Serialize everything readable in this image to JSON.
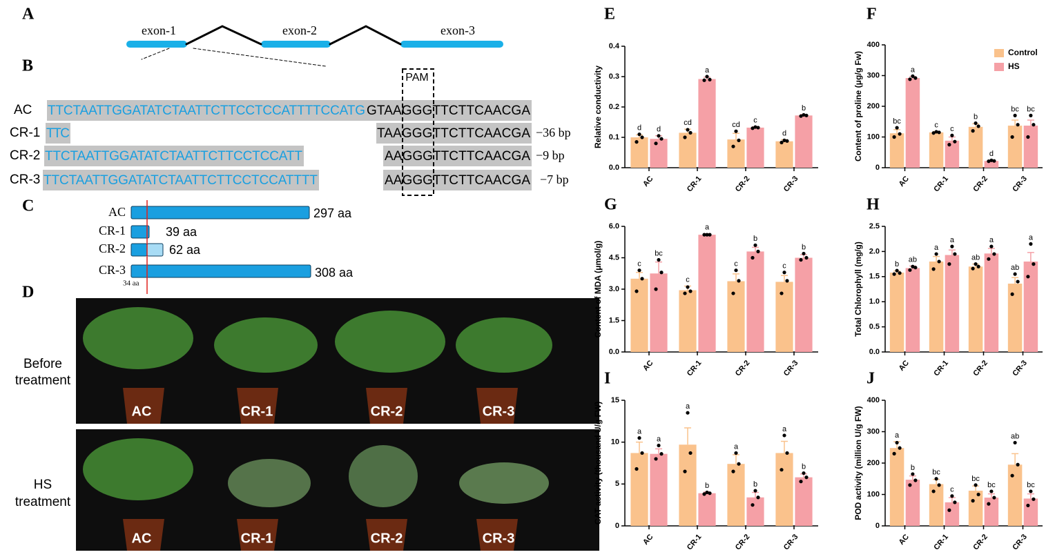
{
  "panel_a": {
    "label": "A",
    "exons": [
      "exon-1",
      "exon-2",
      "exon-3"
    ]
  },
  "panel_b": {
    "label": "B",
    "pam": "PAM",
    "rows": [
      {
        "name": "AC",
        "target": "TTCTAATTGGATATCTAATTCTTCCTCCATTTTCCATG",
        "flank": "GTAAGGGTTCTTCAACGA"
      },
      {
        "name": "CR-1",
        "target": "TTC",
        "flank": "TAAGGGTTCTTCAACGA",
        "deletion": "−36 bp"
      },
      {
        "name": "CR-2",
        "target": "TTCTAATTGGATATCTAATTCTTCCTCCATT",
        "flank": "AAGGGTTCTTCAACGA",
        "deletion": "−9 bp"
      },
      {
        "name": "CR-3",
        "target": "TTCTAATTGGATATCTAATTCTTCCTCCATTTT",
        "flank": "AAGGGTTCTTCAACGA",
        "deletion": "−7 bp"
      }
    ]
  },
  "panel_c": {
    "label": "C",
    "rows": [
      {
        "name": "AC",
        "length": "297 aa"
      },
      {
        "name": "CR-1",
        "length": "39 aa"
      },
      {
        "name": "CR-2",
        "length": "62 aa"
      },
      {
        "name": "CR-3",
        "length": "308 aa"
      }
    ],
    "marker": "34 aa"
  },
  "panel_d": {
    "label": "D",
    "rows": [
      {
        "title": [
          "Before",
          "treatment"
        ],
        "plants": [
          "AC",
          "CR-1",
          "CR-2",
          "CR-3"
        ]
      },
      {
        "title": [
          "HS",
          "treatment"
        ],
        "plants": [
          "AC",
          "CR-1",
          "CR-2",
          "CR-3"
        ]
      }
    ]
  },
  "chart_data": [
    {
      "type": "bar",
      "panel": "E",
      "ylabel": "Relative conductivity",
      "categories": [
        "AC",
        "CR-1",
        "CR-2",
        "CR-3"
      ],
      "ylim": [
        0,
        0.4
      ],
      "yticks": [
        {
          "value": 0,
          "label": "0.0"
        },
        0.1,
        0.2,
        0.3,
        0.4
      ],
      "series": [
        {
          "name": "Control",
          "color": "#fac28c",
          "values": [
            0.1,
            0.115,
            0.093,
            0.087
          ],
          "errors": [
            0.008,
            0.012,
            0.02,
            0.005
          ],
          "points": [
            [
              0.11,
              0.1,
              0.085
            ],
            [
              0.125,
              0.115,
              0.1
            ],
            [
              0.12,
              0.09,
              0.07
            ],
            [
              0.09,
              0.088,
              0.083
            ]
          ],
          "letters": [
            "d",
            "cd",
            "cd",
            "d"
          ]
        },
        {
          "name": "HS",
          "color": "#f5a0a6",
          "values": [
            0.095,
            0.292,
            0.132,
            0.172
          ],
          "errors": [
            0.01,
            0.006,
            0.003,
            0.003
          ],
          "points": [
            [
              0.105,
              0.095,
              0.08
            ],
            [
              0.3,
              0.29,
              0.288
            ],
            [
              0.134,
              0.132,
              0.13
            ],
            [
              0.174,
              0.172,
              0.17
            ]
          ],
          "letters": [
            "d",
            "a",
            "c",
            "b"
          ]
        }
      ]
    },
    {
      "type": "bar",
      "panel": "F",
      "ylabel": "Content of proline (μg/g Fw)",
      "categories": [
        "AC",
        "CR-1",
        "CR-2",
        "CR-3"
      ],
      "ylim": [
        0,
        400
      ],
      "yticks": [
        0,
        100,
        200,
        300,
        400
      ],
      "legend": "upper right",
      "series": [
        {
          "name": "Control",
          "color": "#fac28c",
          "values": [
            112,
            115,
            133,
            137
          ],
          "errors": [
            12,
            3,
            10,
            18
          ],
          "points": [
            [
              130,
              110,
              100
            ],
            [
              117,
              115,
              113
            ],
            [
              145,
              135,
              120
            ],
            [
              170,
              140,
              100
            ]
          ],
          "letters": [
            "bc",
            "c",
            "b",
            "bc"
          ]
        },
        {
          "name": "HS",
          "color": "#f5a0a6",
          "values": [
            292,
            88,
            22,
            137
          ],
          "errors": [
            5,
            12,
            2,
            18
          ],
          "points": [
            [
              298,
              292,
              288
            ],
            [
              105,
              85,
              75
            ],
            [
              24,
              22,
              21
            ],
            [
              170,
              140,
              100
            ]
          ],
          "letters": [
            "a",
            "c",
            "d",
            "bc"
          ]
        }
      ]
    },
    {
      "type": "bar",
      "panel": "G",
      "ylabel": "Content of MDA (μmol/g)",
      "categories": [
        "AC",
        "CR-1",
        "CR-2",
        "CR-3"
      ],
      "ylim": [
        0,
        6
      ],
      "yticks": [
        {
          "value": 0,
          "label": "0.0"
        },
        1.5,
        {
          "value": 3,
          "label": "3.0"
        },
        4.5,
        {
          "value": 6,
          "label": "6.0"
        }
      ],
      "series": [
        {
          "name": "Control",
          "color": "#fac28c",
          "values": [
            3.5,
            2.95,
            3.38,
            3.35
          ],
          "errors": [
            0.3,
            0.2,
            0.35,
            0.3
          ],
          "points": [
            [
              3.9,
              3.5,
              2.9
            ],
            [
              3.1,
              2.9,
              2.8
            ],
            [
              3.9,
              3.4,
              2.8
            ],
            [
              3.8,
              3.4,
              2.8
            ]
          ],
          "letters": [
            "c",
            "c",
            "c",
            "c"
          ]
        },
        {
          "name": "HS",
          "color": "#f5a0a6",
          "values": [
            3.75,
            5.6,
            4.8,
            4.5
          ],
          "errors": [
            0.55,
            0.05,
            0.2,
            0.15
          ],
          "points": [
            [
              4.4,
              3.8,
              3.0
            ],
            [
              5.6,
              5.6,
              5.6
            ],
            [
              5.1,
              4.8,
              4.5
            ],
            [
              4.7,
              4.5,
              4.4
            ]
          ],
          "letters": [
            "bc",
            "a",
            "b",
            "b"
          ]
        }
      ]
    },
    {
      "type": "bar",
      "panel": "H",
      "ylabel": "Total Chlorophyll (mg/g)",
      "categories": [
        "AC",
        "CR-1",
        "CR-2",
        "CR-3"
      ],
      "ylim": [
        0,
        2.5
      ],
      "yticks": [
        {
          "value": 0,
          "label": "0.0"
        },
        0.5,
        {
          "value": 1,
          "label": "1.0"
        },
        1.5,
        {
          "value": 2,
          "label": "2.0"
        },
        2.5
      ],
      "series": [
        {
          "name": "Control",
          "color": "#fac28c",
          "values": [
            1.58,
            1.8,
            1.7,
            1.36
          ],
          "errors": [
            0.03,
            0.1,
            0.05,
            0.12
          ],
          "points": [
            [
              1.62,
              1.57,
              1.55
            ],
            [
              1.95,
              1.8,
              1.65
            ],
            [
              1.75,
              1.7,
              1.66
            ],
            [
              1.55,
              1.4,
              1.15
            ]
          ],
          "letters": [
            "b",
            "a",
            "ab",
            "ab"
          ]
        },
        {
          "name": "HS",
          "color": "#f5a0a6",
          "values": [
            1.67,
            1.93,
            1.96,
            1.8
          ],
          "errors": [
            0.04,
            0.1,
            0.1,
            0.18
          ],
          "points": [
            [
              1.7,
              1.68,
              1.63
            ],
            [
              2.1,
              1.95,
              1.75
            ],
            [
              2.1,
              1.95,
              1.85
            ],
            [
              2.15,
              1.75,
              1.5
            ]
          ],
          "letters": [
            "ab",
            "a",
            "a",
            "a"
          ]
        }
      ]
    },
    {
      "type": "bar",
      "panel": "I",
      "ylabel": "CAT activity (thousand U/g FW)",
      "categories": [
        "AC",
        "CR-1",
        "CR-2",
        "CR-3"
      ],
      "ylim": [
        0,
        15
      ],
      "yticks": [
        0,
        5,
        10,
        15
      ],
      "series": [
        {
          "name": "Control",
          "color": "#fac28c",
          "values": [
            8.7,
            9.7,
            7.4,
            8.7
          ],
          "errors": [
            1.3,
            2.0,
            1.1,
            1.4
          ],
          "points": [
            [
              10.5,
              8.7,
              6.8
            ],
            [
              13.5,
              8.7,
              6.5
            ],
            [
              8.7,
              7.4,
              6.5
            ],
            [
              10.8,
              8.7,
              6.7
            ]
          ],
          "letters": [
            "a",
            "a",
            "a",
            "a"
          ]
        },
        {
          "name": "HS",
          "color": "#f5a0a6",
          "values": [
            8.6,
            3.9,
            3.4,
            5.8
          ],
          "errors": [
            0.6,
            0.15,
            0.6,
            0.4
          ],
          "points": [
            [
              9.6,
              8.6,
              8.0
            ],
            [
              4.0,
              3.9,
              3.8
            ],
            [
              4.2,
              3.4,
              2.5
            ],
            [
              6.3,
              5.8,
              5.3
            ]
          ],
          "letters": [
            "a",
            "b",
            "b",
            "b"
          ]
        }
      ]
    },
    {
      "type": "bar",
      "panel": "J",
      "ylabel": "POD activity  (million U/g FW)",
      "categories": [
        "AC",
        "CR-1",
        "CR-2",
        "CR-3"
      ],
      "ylim": [
        0,
        400
      ],
      "yticks": [
        0,
        100,
        200,
        300,
        400
      ],
      "series": [
        {
          "name": "Control",
          "color": "#fac28c",
          "values": [
            248,
            133,
            112,
            195
          ],
          "errors": [
            20,
            15,
            15,
            35
          ],
          "points": [
            [
              265,
              248,
              230
            ],
            [
              150,
              130,
              110
            ],
            [
              130,
              100,
              80
            ],
            [
              265,
              195,
              160
            ]
          ],
          "letters": [
            "a",
            "bc",
            "bc",
            "ab"
          ]
        },
        {
          "name": "HS",
          "color": "#f5a0a6",
          "values": [
            147,
            75,
            90,
            87
          ],
          "errors": [
            12,
            15,
            12,
            15
          ],
          "points": [
            [
              165,
              145,
              130
            ],
            [
              95,
              75,
              50
            ],
            [
              110,
              90,
              70
            ],
            [
              110,
              85,
              65
            ]
          ],
          "letters": [
            "b",
            "c",
            "bc",
            "bc"
          ]
        }
      ]
    }
  ]
}
